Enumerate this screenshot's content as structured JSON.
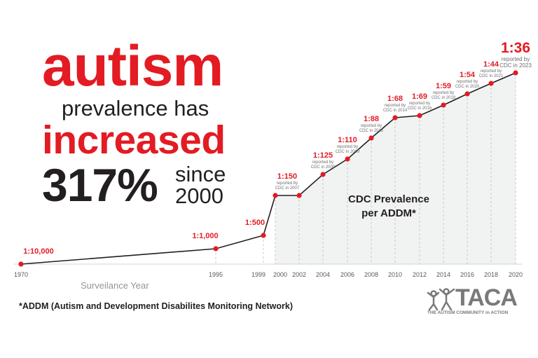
{
  "headline": {
    "line1": "autism",
    "line2": "prevalence has",
    "line3": "increased",
    "percent": "317%",
    "since": "since",
    "since_year": "2000"
  },
  "chart_data": {
    "type": "line",
    "title": "CDC Prevalence per ADDM*",
    "xlabel": "Surveilance Year",
    "ylabel": "",
    "x_ticks": [
      "1970",
      "1995",
      "1999",
      "2000",
      "2002",
      "2004",
      "2006",
      "2008",
      "2010",
      "2012",
      "2014",
      "2016",
      "2018",
      "2020"
    ],
    "points": [
      {
        "year": 1970,
        "label": "1:10,000",
        "note": ""
      },
      {
        "year": 1995,
        "label": "1:1,000",
        "note": ""
      },
      {
        "year": 1999,
        "label": "1:500",
        "note": ""
      },
      {
        "year": 2000,
        "label": "1:150",
        "note": "reported by CDC in 2007"
      },
      {
        "year": 2002,
        "label": "",
        "note": ""
      },
      {
        "year": 2004,
        "label": "1:125",
        "note": "reported by CDC in 2009"
      },
      {
        "year": 2006,
        "label": "1:110",
        "note": "reported by CDC in 2009"
      },
      {
        "year": 2008,
        "label": "1:88",
        "note": "reported by CDC in 2012"
      },
      {
        "year": 2010,
        "label": "1:68",
        "note": "reported by CDC in 2014"
      },
      {
        "year": 2012,
        "label": "1:69",
        "note": "reported by CDC in 2016"
      },
      {
        "year": 2014,
        "label": "1:59",
        "note": "reported by CDC in 2018"
      },
      {
        "year": 2016,
        "label": "1:54",
        "note": "reported by CDC in 2020"
      },
      {
        "year": 2018,
        "label": "1:44",
        "note": "reported by CDC in 2021"
      },
      {
        "year": 2020,
        "label": "1:36",
        "note": "reported by CDC in 2023"
      }
    ],
    "shaded_range": [
      2000,
      2020
    ],
    "grid": false,
    "colors": {
      "line": "#231f20",
      "marker": "#e31b23",
      "shade": "#f1f2f2",
      "guide": "#c7c8ca"
    }
  },
  "footnote": "*ADDM (Autism and Development Disabilites Monitoring Network)",
  "logo": {
    "name": "TACA",
    "tagline": "THE AUTISM COMMUNITY in ACTION"
  }
}
